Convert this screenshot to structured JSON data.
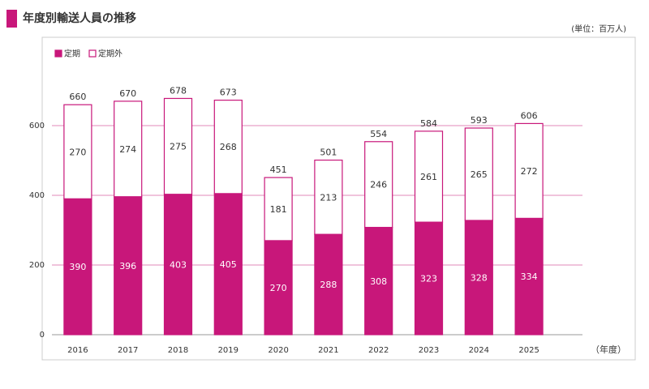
{
  "chart_data": {
    "type": "stacked_bar",
    "title": "年度別輸送人員の推移",
    "unit": "(単位：百万人)",
    "x_label": "（年度）",
    "categories": [
      "2016",
      "2017",
      "2018",
      "2019",
      "2020",
      "2021",
      "2022",
      "2023",
      "2024",
      "2025"
    ],
    "series": [
      {
        "name": "定期",
        "color": "#c8177a",
        "values": [
          390,
          396,
          403,
          405,
          270,
          288,
          308,
          323,
          328,
          334
        ]
      },
      {
        "name": "定期外",
        "color": "#ffffff",
        "values": [
          270,
          274,
          275,
          268,
          181,
          213,
          246,
          261,
          265,
          272
        ]
      }
    ],
    "totals": [
      660,
      670,
      678,
      673,
      451,
      501,
      554,
      584,
      593,
      606
    ],
    "ylim": [
      0,
      700
    ],
    "yticks": [
      0,
      200,
      400,
      600
    ],
    "grid": true,
    "legend": "top-left"
  }
}
